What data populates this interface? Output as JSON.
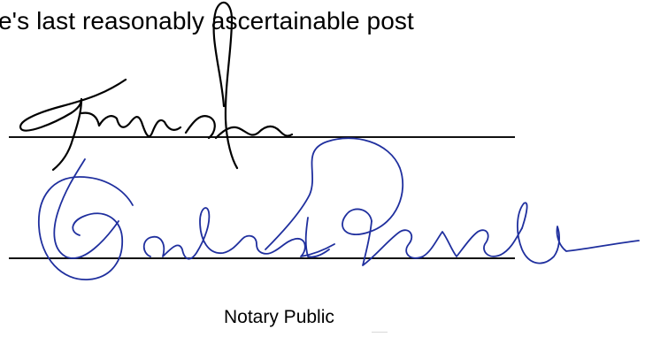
{
  "document": {
    "top_text": "e's last reasonably ascertainable post",
    "notary_label": "Notary Public"
  },
  "signatures": {
    "first": {
      "lettering": "Kathy Ache",
      "ink_color": "#000000"
    },
    "second": {
      "lettering": "Darlene Degstedt",
      "ink_color": "#1f2f9e"
    }
  }
}
